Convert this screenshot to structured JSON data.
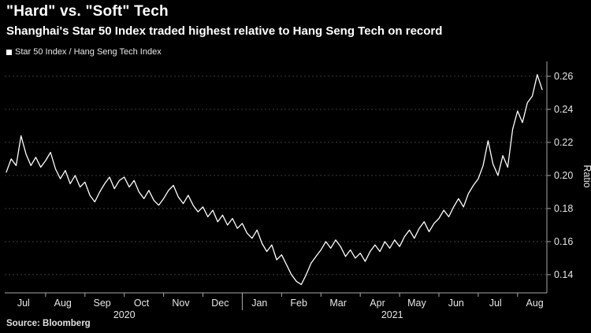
{
  "header": {
    "title": "\"Hard\" vs. \"Soft\" Tech",
    "subtitle": "Shanghai's Star 50 Index traded highest relative to Hang Seng Tech on record"
  },
  "legend": {
    "label": "Star 50 Index / Hang Seng Tech Index",
    "swatch_color": "#ffffff"
  },
  "source": "Source: Bloomberg",
  "chart_data": {
    "type": "line",
    "title": "\"Hard\" vs. \"Soft\" Tech",
    "subtitle": "Shanghai's Star 50 Index traded highest relative to Hang Seng Tech on record",
    "ylabel": "Ratio",
    "xlabel": "",
    "ylim": [
      0.129,
      0.269
    ],
    "y_ticks": [
      0.14,
      0.16,
      0.18,
      0.2,
      0.22,
      0.24,
      0.26
    ],
    "grid": "horizontal-dashed",
    "legend_position": "top-left",
    "months": [
      "Jul",
      "Aug",
      "Sep",
      "Oct",
      "Nov",
      "Dec",
      "Jan",
      "Feb",
      "Mar",
      "Apr",
      "May",
      "Jun",
      "Jul",
      "Aug"
    ],
    "years": [
      {
        "label": "2020",
        "boundary_month_index": 0
      },
      {
        "label": "2021",
        "boundary_month_index": 6
      }
    ],
    "points_per_month": 8,
    "series": [
      {
        "name": "Star 50 Index / Hang Seng Tech Index",
        "color": "#ffffff",
        "values": [
          0.202,
          0.21,
          0.206,
          0.224,
          0.213,
          0.206,
          0.211,
          0.205,
          0.209,
          0.214,
          0.204,
          0.198,
          0.203,
          0.195,
          0.2,
          0.193,
          0.196,
          0.188,
          0.184,
          0.19,
          0.195,
          0.199,
          0.192,
          0.197,
          0.199,
          0.193,
          0.197,
          0.19,
          0.186,
          0.191,
          0.185,
          0.182,
          0.186,
          0.191,
          0.194,
          0.187,
          0.183,
          0.188,
          0.182,
          0.178,
          0.181,
          0.175,
          0.179,
          0.172,
          0.176,
          0.17,
          0.174,
          0.168,
          0.171,
          0.165,
          0.162,
          0.167,
          0.159,
          0.154,
          0.158,
          0.149,
          0.152,
          0.146,
          0.14,
          0.136,
          0.134,
          0.14,
          0.147,
          0.151,
          0.155,
          0.16,
          0.156,
          0.161,
          0.157,
          0.151,
          0.155,
          0.15,
          0.153,
          0.148,
          0.154,
          0.158,
          0.154,
          0.16,
          0.156,
          0.161,
          0.157,
          0.163,
          0.167,
          0.162,
          0.168,
          0.172,
          0.166,
          0.171,
          0.174,
          0.179,
          0.175,
          0.181,
          0.186,
          0.181,
          0.189,
          0.194,
          0.198,
          0.206,
          0.221,
          0.207,
          0.2,
          0.212,
          0.205,
          0.228,
          0.239,
          0.232,
          0.244,
          0.248,
          0.261,
          0.252
        ]
      }
    ],
    "colors": {
      "background": "#000000",
      "line": "#ffffff",
      "grid": "#3b3b3b",
      "axis": "#a8a8a8",
      "tick_text": "#e6e6e6"
    }
  }
}
